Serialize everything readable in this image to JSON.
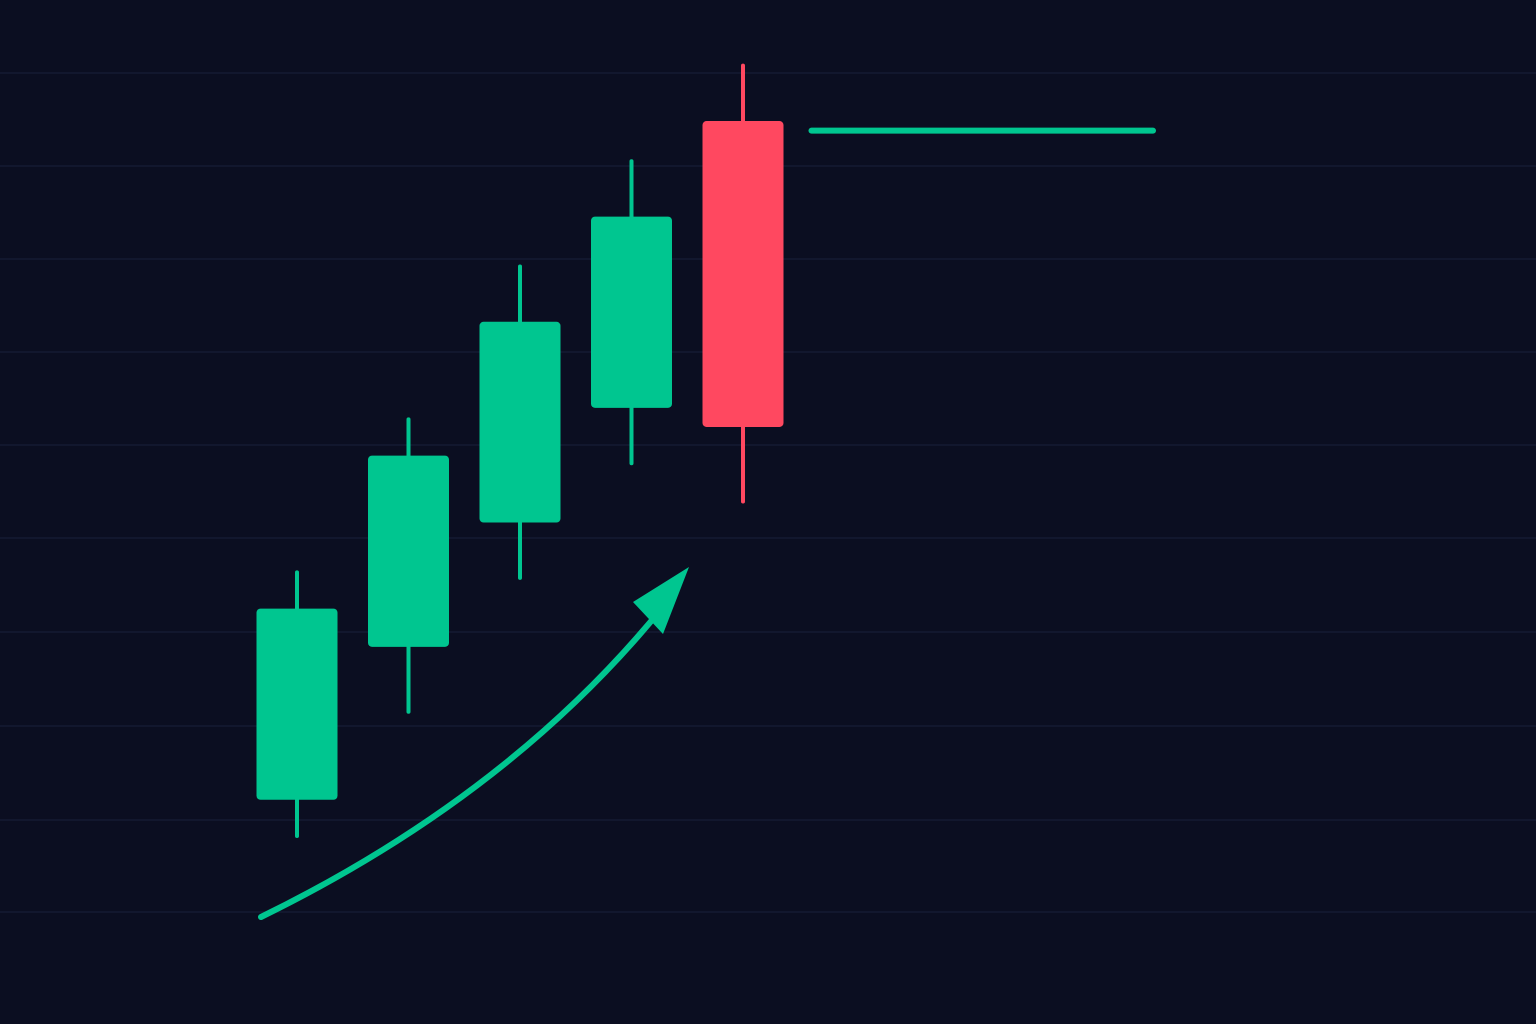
{
  "chart_data": {
    "type": "candlestick",
    "title": "",
    "xlabel": "",
    "ylabel": "",
    "grid": true,
    "legend": "none",
    "ylim": [
      0,
      100
    ],
    "colors": {
      "background": "#0b0e21",
      "grid": "#151a33",
      "bullish": "#00c690",
      "bearish": "#ff4860",
      "trend_arrow": "#00c690",
      "level_line": "#00c690"
    },
    "candles": [
      {
        "open": 20,
        "close": 40,
        "high": 44,
        "low": 16,
        "direction": "up"
      },
      {
        "open": 36,
        "close": 56,
        "high": 60,
        "low": 29,
        "direction": "up"
      },
      {
        "open": 49,
        "close": 70,
        "high": 76,
        "low": 43,
        "direction": "up"
      },
      {
        "open": 61,
        "close": 81,
        "high": 87,
        "low": 55,
        "direction": "up"
      },
      {
        "open": 91,
        "close": 59,
        "high": 97,
        "low": 51,
        "direction": "down"
      }
    ],
    "annotations": {
      "trend_arrow": {
        "direction": "up",
        "label": ""
      },
      "horizontal_level": {
        "y": 90,
        "label": ""
      }
    }
  }
}
